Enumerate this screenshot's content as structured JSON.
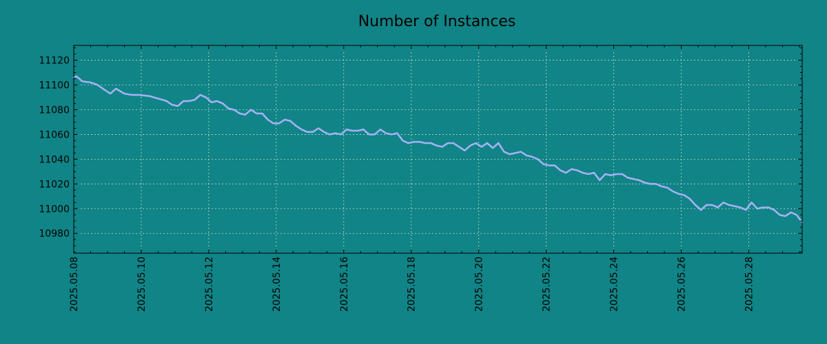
{
  "chart_data": {
    "type": "line",
    "title": "Number of Instances",
    "xlabel": "",
    "ylabel": "",
    "x_range": [
      "2025.05.08",
      "2025.05.29 14:00"
    ],
    "ylim": [
      10964,
      11132
    ],
    "y_ticks": [
      10980,
      11000,
      11020,
      11040,
      11060,
      11080,
      11100,
      11120
    ],
    "x_ticks": [
      "2025.05.08",
      "2025.05.10",
      "2025.05.12",
      "2025.05.14",
      "2025.05.16",
      "2025.05.18",
      "2025.05.20",
      "2025.05.22",
      "2025.05.24",
      "2025.05.26",
      "2025.05.28"
    ],
    "grid": true,
    "line_color": "#a5b1f5",
    "series": [
      {
        "x": [
          "2025.05.08 00:00",
          "2025.05.08 02:00",
          "2025.05.08 06:00",
          "2025.05.08 12:00",
          "2025.05.08 17:00",
          "2025.05.08 22:00",
          "2025.05.09 02:00",
          "2025.05.09 06:00",
          "2025.05.09 12:00",
          "2025.05.09 17:00",
          "2025.05.09 22:00",
          "2025.05.10 06:00",
          "2025.05.10 12:00",
          "2025.05.10 18:00",
          "2025.05.10 22:00",
          "2025.05.11 02:00",
          "2025.05.11 06:00",
          "2025.05.11 10:00",
          "2025.05.11 14:00",
          "2025.05.11 18:00",
          "2025.05.11 22:00",
          "2025.05.12 02:00",
          "2025.05.12 06:00",
          "2025.05.12 10:00",
          "2025.05.12 14:00",
          "2025.05.12 18:00",
          "2025.05.12 22:00",
          "2025.05.13 02:00",
          "2025.05.13 06:00",
          "2025.05.13 10:00",
          "2025.05.13 14:00",
          "2025.05.13 18:00",
          "2025.05.13 22:00",
          "2025.05.14 02:00",
          "2025.05.14 06:00",
          "2025.05.14 10:00",
          "2025.05.14 14:00",
          "2025.05.14 18:00",
          "2025.05.14 22:00",
          "2025.05.15 02:00",
          "2025.05.15 06:00",
          "2025.05.15 10:00",
          "2025.05.15 14:00",
          "2025.05.15 18:00",
          "2025.05.15 22:00",
          "2025.05.16 02:00",
          "2025.05.16 06:00",
          "2025.05.16 10:00",
          "2025.05.16 14:00",
          "2025.05.16 18:00",
          "2025.05.16 22:00",
          "2025.05.17 02:00",
          "2025.05.17 06:00",
          "2025.05.17 10:00",
          "2025.05.17 14:00",
          "2025.05.17 18:00",
          "2025.05.17 22:00",
          "2025.05.18 02:00",
          "2025.05.18 06:00",
          "2025.05.18 10:00",
          "2025.05.18 14:00",
          "2025.05.18 18:00",
          "2025.05.18 22:00",
          "2025.05.19 02:00",
          "2025.05.19 06:00",
          "2025.05.19 10:00",
          "2025.05.19 14:00",
          "2025.05.19 18:00",
          "2025.05.19 22:00",
          "2025.05.20 02:00",
          "2025.05.20 06:00",
          "2025.05.20 10:00",
          "2025.05.20 14:00",
          "2025.05.20 18:00",
          "2025.05.20 22:00",
          "2025.05.21 02:00",
          "2025.05.21 06:00",
          "2025.05.21 10:00",
          "2025.05.21 14:00",
          "2025.05.21 18:00",
          "2025.05.21 22:00",
          "2025.05.22 02:00",
          "2025.05.22 06:00",
          "2025.05.22 10:00",
          "2025.05.22 14:00",
          "2025.05.22 18:00",
          "2025.05.22 22:00",
          "2025.05.23 02:00",
          "2025.05.23 06:00",
          "2025.05.23 10:00",
          "2025.05.23 14:00",
          "2025.05.23 18:00",
          "2025.05.23 22:00",
          "2025.05.24 02:00",
          "2025.05.24 06:00",
          "2025.05.24 10:00",
          "2025.05.24 14:00",
          "2025.05.24 18:00",
          "2025.05.24 22:00",
          "2025.05.25 02:00",
          "2025.05.25 06:00",
          "2025.05.25 10:00",
          "2025.05.25 14:00",
          "2025.05.25 18:00",
          "2025.05.25 22:00",
          "2025.05.26 02:00",
          "2025.05.26 06:00",
          "2025.05.26 10:00",
          "2025.05.26 14:00",
          "2025.05.26 18:00",
          "2025.05.26 22:00",
          "2025.05.27 02:00",
          "2025.05.27 06:00",
          "2025.05.27 10:00",
          "2025.05.27 14:00",
          "2025.05.27 18:00",
          "2025.05.27 22:00",
          "2025.05.28 02:00",
          "2025.05.28 06:00",
          "2025.05.28 10:00",
          "2025.05.28 14:00",
          "2025.05.28 18:00",
          "2025.05.28 22:00",
          "2025.05.29 02:00",
          "2025.05.29 06:00",
          "2025.05.29 10:00",
          "2025.05.29 14:00"
        ],
        "y": [
          11106,
          11107,
          11103,
          11102,
          11100,
          11096,
          11093,
          11097,
          11093,
          11092,
          11092,
          11091,
          11089,
          11087,
          11084,
          11083,
          11087,
          11087,
          11088,
          11092,
          11090,
          11086,
          11087,
          11085,
          11081,
          11080,
          11077,
          11076,
          11080,
          11077,
          11077,
          11072,
          11069,
          11069,
          11072,
          11071,
          11067,
          11064,
          11062,
          11062,
          11065,
          11062,
          11060,
          11061,
          11060,
          11064,
          11063,
          11063,
          11064,
          11060,
          11060,
          11064,
          11061,
          11060,
          11061,
          11055,
          11053,
          11054,
          11054,
          11053,
          11053,
          11051,
          11050,
          11053,
          11053,
          11050,
          11047,
          11051,
          11053,
          11050,
          11053,
          11049,
          11053,
          11046,
          11044,
          11045,
          11046,
          11043,
          11042,
          11040,
          11036,
          11035,
          11035,
          11031,
          11029,
          11032,
          11031,
          11029,
          11028,
          11029,
          11023,
          11028,
          11027,
          11028,
          11028,
          11025,
          11024,
          11023,
          11021,
          11020,
          11020,
          11018,
          11017,
          11014,
          11012,
          11011,
          11008,
          11003,
          10999,
          11003,
          11003,
          11001,
          11005,
          11003,
          11002,
          11001,
          10999,
          11005,
          11000,
          11001,
          11001,
          10999,
          10995,
          10994,
          10997,
          10995,
          10989
        ]
      }
    ]
  }
}
